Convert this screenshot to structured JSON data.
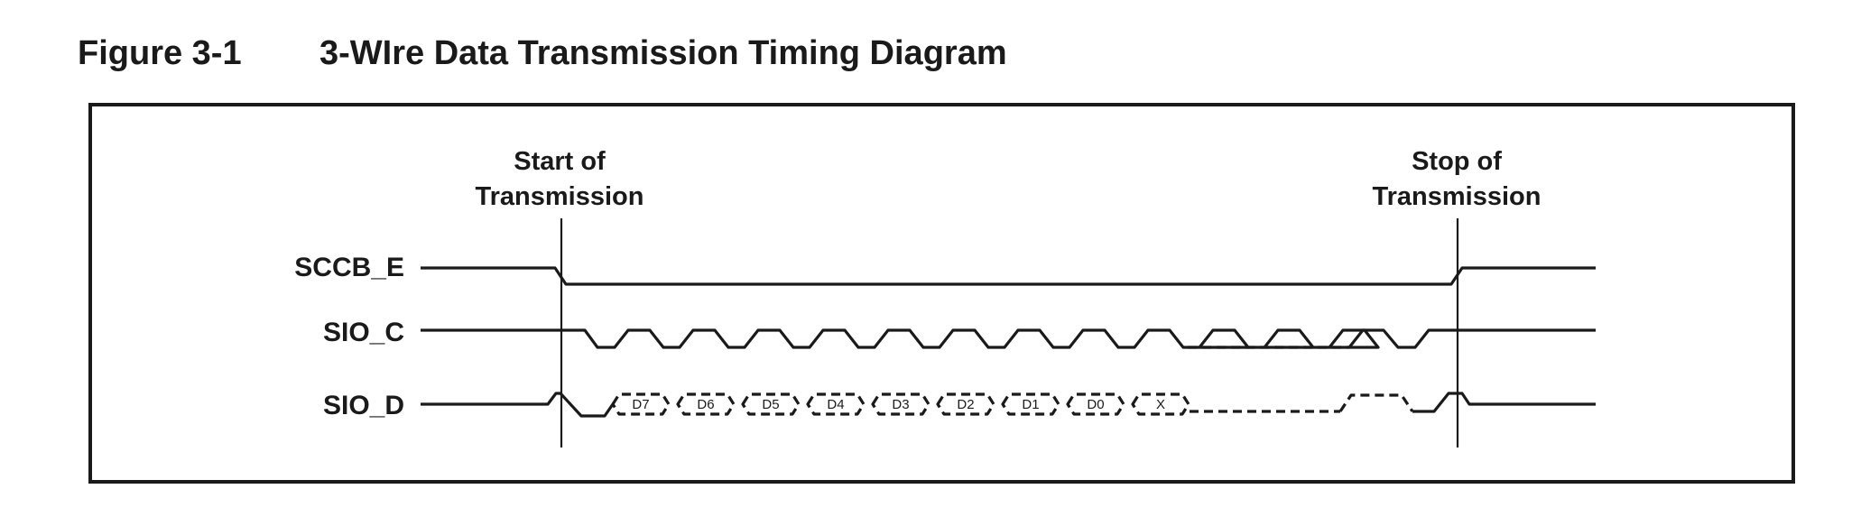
{
  "figure": {
    "number": "Figure 3-1",
    "title": "3-WIre Data Transmission Timing Diagram"
  },
  "markers": {
    "start": [
      "Start of",
      "Transmission"
    ],
    "stop": [
      "Stop of",
      "Transmission"
    ]
  },
  "signals": {
    "enable": "SCCB_E",
    "clock": "SIO_C",
    "data": "SIO_D"
  },
  "data_bits": [
    "D7",
    "D6",
    "D5",
    "D4",
    "D3",
    "D2",
    "D1",
    "D0",
    "X"
  ]
}
